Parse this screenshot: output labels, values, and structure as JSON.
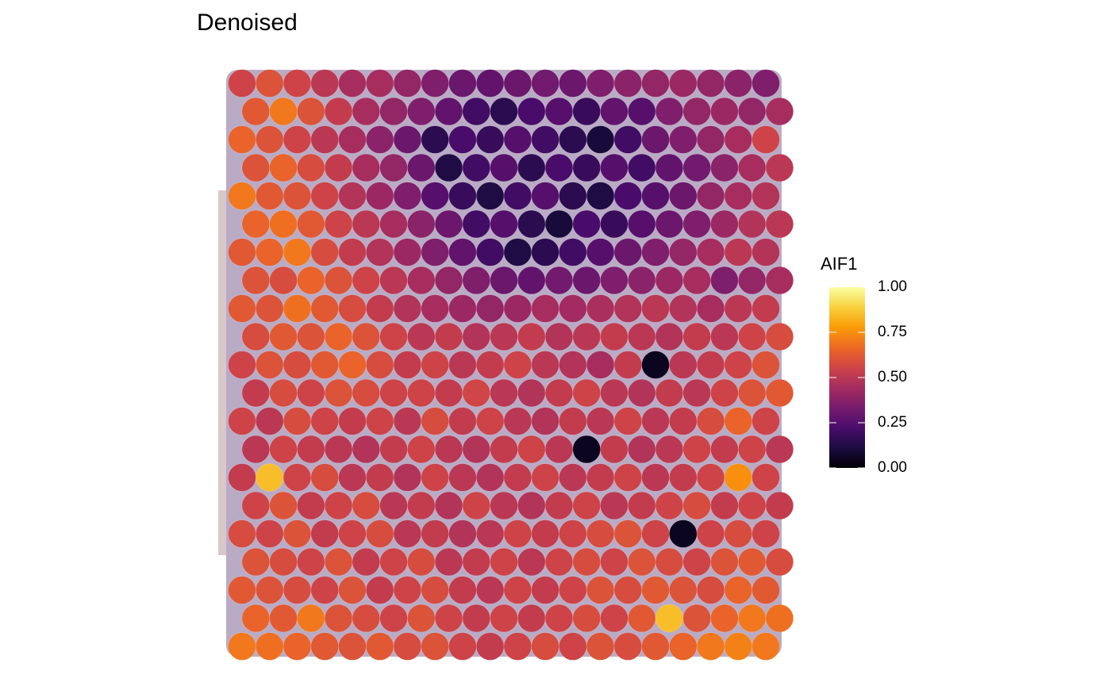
{
  "chart_data": {
    "type": "spatial",
    "title": "Denoised",
    "legend_title": "AIF1",
    "colormap": [
      "#000004",
      "#1b0c41",
      "#4a0c6b",
      "#781c6d",
      "#a52c60",
      "#cf4446",
      "#ed6925",
      "#fb9b06",
      "#f7d13d",
      "#fcffa4"
    ],
    "clim": [
      0,
      1
    ],
    "cticks": [
      {
        "value": 0,
        "label": "0.00"
      },
      {
        "value": 0.25,
        "label": "0.25"
      },
      {
        "value": 0.5,
        "label": "0.50"
      },
      {
        "value": 0.75,
        "label": "0.75"
      },
      {
        "value": 1,
        "label": "1.00"
      }
    ],
    "values": [
      [
        0.55,
        0.6,
        0.55,
        0.5,
        0.45,
        0.45,
        0.4,
        0.35,
        0.3,
        0.28,
        0.3,
        0.32,
        0.3,
        0.35,
        0.38,
        0.4,
        0.42,
        0.4,
        0.38,
        0.35
      ],
      [
        0.62,
        0.7,
        0.6,
        0.52,
        0.45,
        0.4,
        0.35,
        0.28,
        0.2,
        0.15,
        0.22,
        0.25,
        0.18,
        0.28,
        0.25,
        0.35,
        0.4,
        0.42,
        0.4,
        0.45
      ],
      [
        0.65,
        0.6,
        0.55,
        0.5,
        0.45,
        0.38,
        0.3,
        0.15,
        0.22,
        0.18,
        0.25,
        0.2,
        0.15,
        0.1,
        0.2,
        0.3,
        0.35,
        0.4,
        0.45,
        0.55
      ],
      [
        0.6,
        0.65,
        0.58,
        0.52,
        0.45,
        0.4,
        0.3,
        0.12,
        0.2,
        0.25,
        0.15,
        0.22,
        0.18,
        0.25,
        0.2,
        0.28,
        0.32,
        0.38,
        0.45,
        0.5
      ],
      [
        0.7,
        0.62,
        0.6,
        0.55,
        0.48,
        0.42,
        0.35,
        0.25,
        0.18,
        0.12,
        0.2,
        0.25,
        0.15,
        0.12,
        0.22,
        0.25,
        0.3,
        0.4,
        0.45,
        0.48
      ],
      [
        0.65,
        0.68,
        0.62,
        0.55,
        0.5,
        0.45,
        0.38,
        0.3,
        0.2,
        0.25,
        0.15,
        0.1,
        0.22,
        0.18,
        0.25,
        0.3,
        0.35,
        0.42,
        0.48,
        0.5
      ],
      [
        0.62,
        0.65,
        0.7,
        0.58,
        0.52,
        0.48,
        0.42,
        0.35,
        0.28,
        0.2,
        0.12,
        0.15,
        0.2,
        0.25,
        0.3,
        0.35,
        0.4,
        0.45,
        0.5,
        0.48
      ],
      [
        0.6,
        0.58,
        0.65,
        0.6,
        0.55,
        0.5,
        0.45,
        0.4,
        0.35,
        0.3,
        0.28,
        0.32,
        0.3,
        0.35,
        0.38,
        0.42,
        0.45,
        0.35,
        0.4,
        0.45
      ],
      [
        0.62,
        0.6,
        0.68,
        0.62,
        0.58,
        0.52,
        0.48,
        0.45,
        0.42,
        0.4,
        0.42,
        0.45,
        0.44,
        0.46,
        0.48,
        0.5,
        0.48,
        0.45,
        0.5,
        0.52
      ],
      [
        0.58,
        0.62,
        0.6,
        0.65,
        0.6,
        0.55,
        0.5,
        0.52,
        0.48,
        0.5,
        0.52,
        0.48,
        0.5,
        0.52,
        0.5,
        0.48,
        0.52,
        0.5,
        0.55,
        0.58
      ],
      [
        0.55,
        0.6,
        0.58,
        0.62,
        0.65,
        0.58,
        0.52,
        0.55,
        0.5,
        0.52,
        0.55,
        0.5,
        0.48,
        0.45,
        0.52,
        0.05,
        0.5,
        0.52,
        0.55,
        0.6
      ],
      [
        0.52,
        0.58,
        0.55,
        0.6,
        0.58,
        0.55,
        0.55,
        0.52,
        0.56,
        0.5,
        0.48,
        0.52,
        0.55,
        0.5,
        0.48,
        0.52,
        0.5,
        0.55,
        0.6,
        0.62
      ],
      [
        0.55,
        0.5,
        0.58,
        0.55,
        0.52,
        0.55,
        0.5,
        0.58,
        0.52,
        0.55,
        0.5,
        0.48,
        0.52,
        0.5,
        0.55,
        0.5,
        0.52,
        0.58,
        0.65,
        0.55
      ],
      [
        0.5,
        0.55,
        0.52,
        0.5,
        0.48,
        0.52,
        0.55,
        0.5,
        0.48,
        0.52,
        0.55,
        0.5,
        0.05,
        0.52,
        0.48,
        0.5,
        0.55,
        0.52,
        0.55,
        0.5
      ],
      [
        0.52,
        0.85,
        0.55,
        0.58,
        0.5,
        0.52,
        0.48,
        0.55,
        0.5,
        0.48,
        0.52,
        0.55,
        0.5,
        0.52,
        0.55,
        0.5,
        0.52,
        0.55,
        0.75,
        0.55
      ],
      [
        0.55,
        0.6,
        0.52,
        0.55,
        0.58,
        0.5,
        0.52,
        0.48,
        0.55,
        0.5,
        0.48,
        0.52,
        0.55,
        0.5,
        0.52,
        0.55,
        0.58,
        0.52,
        0.55,
        0.52
      ],
      [
        0.58,
        0.55,
        0.6,
        0.52,
        0.55,
        0.58,
        0.5,
        0.52,
        0.48,
        0.5,
        0.55,
        0.52,
        0.55,
        0.58,
        0.6,
        0.55,
        0.05,
        0.55,
        0.58,
        0.55
      ],
      [
        0.6,
        0.58,
        0.55,
        0.6,
        0.52,
        0.55,
        0.58,
        0.5,
        0.52,
        0.55,
        0.5,
        0.55,
        0.58,
        0.55,
        0.6,
        0.58,
        0.55,
        0.6,
        0.62,
        0.58
      ],
      [
        0.62,
        0.6,
        0.58,
        0.55,
        0.6,
        0.52,
        0.55,
        0.58,
        0.52,
        0.5,
        0.55,
        0.52,
        0.55,
        0.6,
        0.58,
        0.62,
        0.6,
        0.58,
        0.65,
        0.62
      ],
      [
        0.65,
        0.62,
        0.7,
        0.6,
        0.58,
        0.55,
        0.6,
        0.55,
        0.52,
        0.55,
        0.52,
        0.55,
        0.58,
        0.55,
        0.62,
        0.85,
        0.6,
        0.65,
        0.7,
        0.68
      ],
      [
        0.7,
        0.68,
        0.65,
        0.62,
        0.6,
        0.62,
        0.58,
        0.6,
        0.55,
        0.52,
        0.55,
        0.58,
        0.55,
        0.6,
        0.58,
        0.62,
        0.65,
        0.7,
        0.72,
        0.7
      ]
    ]
  }
}
